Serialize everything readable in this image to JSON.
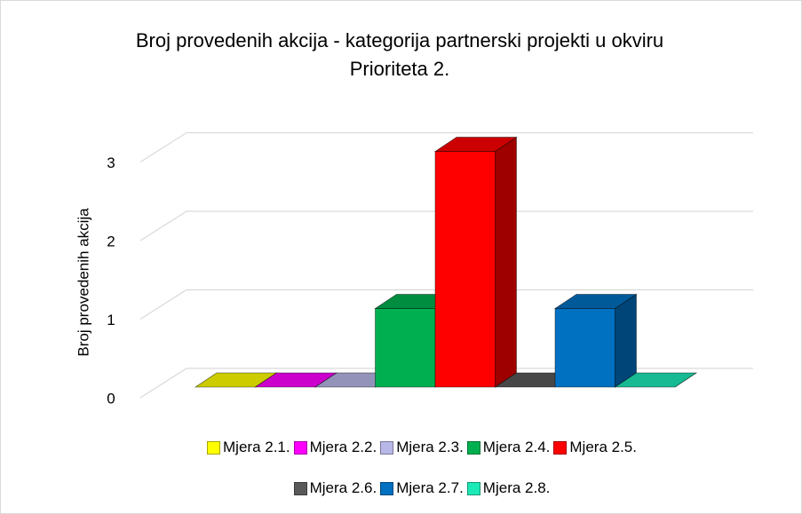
{
  "chart_data": {
    "type": "bar",
    "title": "Broj provedenih akcija - kategorija partnerski projekti u okviru Prioriteta 2.",
    "y_label": "Broj provedenih akcija",
    "series": [
      {
        "name": "Mjera 2.1.",
        "color": "#ffff00",
        "values": [
          0
        ]
      },
      {
        "name": "Mjera 2.2.",
        "color": "#ff00ff",
        "values": [
          0
        ]
      },
      {
        "name": "Mjera 2.3.",
        "color": "#b8b8e8",
        "values": [
          0
        ]
      },
      {
        "name": "Mjera 2.4.",
        "color": "#00b050",
        "values": [
          1
        ]
      },
      {
        "name": "Mjera 2.5.",
        "color": "#ff0000",
        "values": [
          3
        ]
      },
      {
        "name": "Mjera 2.6.",
        "color": "#595959",
        "values": [
          0
        ]
      },
      {
        "name": "Mjera 2.7.",
        "color": "#0070c0",
        "values": [
          1
        ]
      },
      {
        "name": "Mjera 2.8.",
        "color": "#1de9b6",
        "values": [
          0
        ]
      }
    ],
    "ylim": [
      0,
      3.3
    ],
    "yticks": [
      0,
      1,
      2,
      3
    ],
    "grid": true,
    "legend": "bottom"
  }
}
